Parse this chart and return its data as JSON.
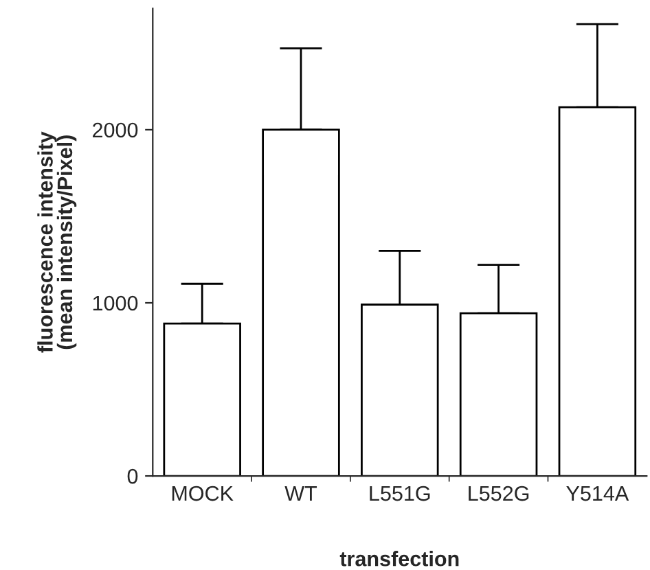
{
  "chart_data": {
    "type": "bar",
    "xlabel": "transfection",
    "ylabel": "fluorescence intensity\n(mean intensity/Pixel)",
    "categories": [
      "MOCK",
      "WT",
      "L551G",
      "L552G",
      "Y514A"
    ],
    "values": [
      880,
      2000,
      990,
      940,
      2130
    ],
    "errors": [
      [
        880,
        1110
      ],
      [
        2000,
        2470
      ],
      [
        990,
        1300
      ],
      [
        940,
        1220
      ],
      [
        2130,
        2610
      ]
    ],
    "color": "#ffffff",
    "ylim": [
      0,
      2700
    ],
    "yticks": [
      0,
      1000,
      2000
    ],
    "grid": false
  }
}
